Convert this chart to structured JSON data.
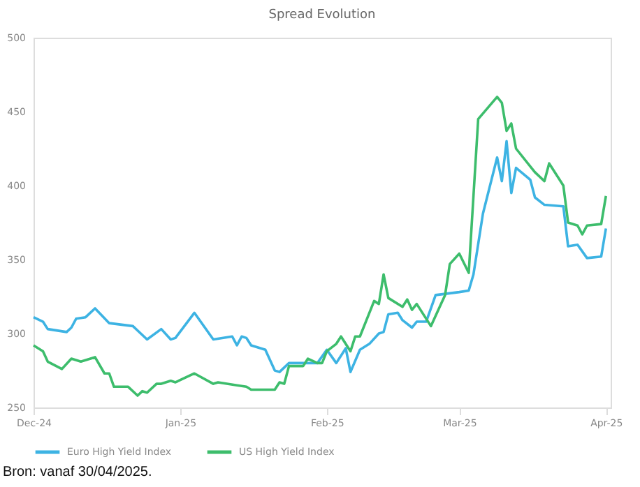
{
  "chart_data": {
    "type": "line",
    "title": "Spread Evolution",
    "xlim": [
      "2024-12-01",
      "2025-04-02"
    ],
    "xticks": [
      {
        "value": "2024-12-01",
        "label": "Dec-24"
      },
      {
        "value": "2025-01-01",
        "label": "Jan-25"
      },
      {
        "value": "2025-02-01",
        "label": "Feb-25"
      },
      {
        "value": "2025-03-01",
        "label": "Mar-25"
      },
      {
        "value": "2025-04-01",
        "label": "Apr-25"
      }
    ],
    "ylim": [
      250,
      500
    ],
    "yticks": [
      250,
      300,
      350,
      400,
      450,
      500
    ],
    "grid": false,
    "legend": "bottom",
    "line_style": "solid",
    "marker": "none",
    "annotations": [
      "Bron: vanaf 30/04/2025."
    ],
    "series": [
      {
        "name": "Euro High Yield Index",
        "color": "#3db3e3",
        "x": [
          "2024-12-01",
          "2024-12-03",
          "2024-12-04",
          "2024-12-08",
          "2024-12-09",
          "2024-12-10",
          "2024-12-12",
          "2024-12-14",
          "2024-12-17",
          "2024-12-22",
          "2024-12-23",
          "2024-12-25",
          "2024-12-28",
          "2024-12-30",
          "2024-12-31",
          "2025-01-04",
          "2025-01-08",
          "2025-01-12",
          "2025-01-13",
          "2025-01-14",
          "2025-01-15",
          "2025-01-16",
          "2025-01-19",
          "2025-01-21",
          "2025-01-22",
          "2025-01-24",
          "2025-01-29",
          "2025-01-30",
          "2025-02-01",
          "2025-02-03",
          "2025-02-05",
          "2025-02-06",
          "2025-02-08",
          "2025-02-10",
          "2025-02-12",
          "2025-02-13",
          "2025-02-14",
          "2025-02-16",
          "2025-02-17",
          "2025-02-19",
          "2025-02-20",
          "2025-02-21",
          "2025-02-22",
          "2025-02-24",
          "2025-03-01",
          "2025-03-03",
          "2025-03-04",
          "2025-03-06",
          "2025-03-09",
          "2025-03-10",
          "2025-03-11",
          "2025-03-12",
          "2025-03-13",
          "2025-03-16",
          "2025-03-17",
          "2025-03-19",
          "2025-03-23",
          "2025-03-24",
          "2025-03-26",
          "2025-03-28",
          "2025-03-31",
          "2025-04-01"
        ],
        "values": [
          311,
          308,
          303,
          301,
          304,
          310,
          311,
          317,
          307,
          305,
          302,
          296,
          303,
          296,
          297,
          314,
          296,
          298,
          292,
          298,
          297,
          292,
          289,
          275,
          274,
          280,
          280,
          280,
          289,
          280,
          290,
          274,
          289,
          293,
          300,
          301,
          313,
          314,
          309,
          304,
          308,
          308,
          308,
          326,
          328,
          329,
          340,
          381,
          419,
          403,
          430,
          395,
          412,
          404,
          392,
          387,
          386,
          359,
          360,
          351,
          352,
          371
        ]
      },
      {
        "name": "US High Yield Index",
        "color": "#3dbd6c",
        "x": [
          "2024-12-01",
          "2024-12-03",
          "2024-12-04",
          "2024-12-07",
          "2024-12-09",
          "2024-12-11",
          "2024-12-14",
          "2024-12-16",
          "2024-12-17",
          "2024-12-18",
          "2024-12-21",
          "2024-12-23",
          "2024-12-24",
          "2024-12-25",
          "2024-12-27",
          "2024-12-28",
          "2024-12-30",
          "2024-12-31",
          "2025-01-04",
          "2025-01-08",
          "2025-01-09",
          "2025-01-13",
          "2025-01-15",
          "2025-01-16",
          "2025-01-21",
          "2025-01-22",
          "2025-01-23",
          "2025-01-24",
          "2025-01-27",
          "2025-01-28",
          "2025-01-30",
          "2025-01-31",
          "2025-02-01",
          "2025-02-03",
          "2025-02-04",
          "2025-02-06",
          "2025-02-07",
          "2025-02-08",
          "2025-02-11",
          "2025-02-12",
          "2025-02-13",
          "2025-02-14",
          "2025-02-17",
          "2025-02-18",
          "2025-02-19",
          "2025-02-20",
          "2025-02-23",
          "2025-02-25",
          "2025-02-26",
          "2025-02-27",
          "2025-03-01",
          "2025-03-03",
          "2025-03-05",
          "2025-03-09",
          "2025-03-10",
          "2025-03-11",
          "2025-03-12",
          "2025-03-13",
          "2025-03-17",
          "2025-03-19",
          "2025-03-20",
          "2025-03-23",
          "2025-03-24",
          "2025-03-26",
          "2025-03-27",
          "2025-03-28",
          "2025-03-31",
          "2025-04-01"
        ],
        "values": [
          292,
          288,
          281,
          276,
          283,
          281,
          284,
          273,
          273,
          264,
          264,
          258,
          261,
          260,
          266,
          266,
          268,
          267,
          273,
          266,
          267,
          265,
          264,
          262,
          262,
          267,
          266,
          278,
          278,
          283,
          280,
          280,
          288,
          293,
          298,
          288,
          298,
          298,
          322,
          320,
          340,
          324,
          318,
          323,
          316,
          320,
          305,
          319,
          326,
          347,
          354,
          341,
          445,
          460,
          456,
          437,
          442,
          425,
          409,
          403,
          415,
          400,
          375,
          373,
          367,
          373,
          374,
          393
        ]
      }
    ]
  }
}
